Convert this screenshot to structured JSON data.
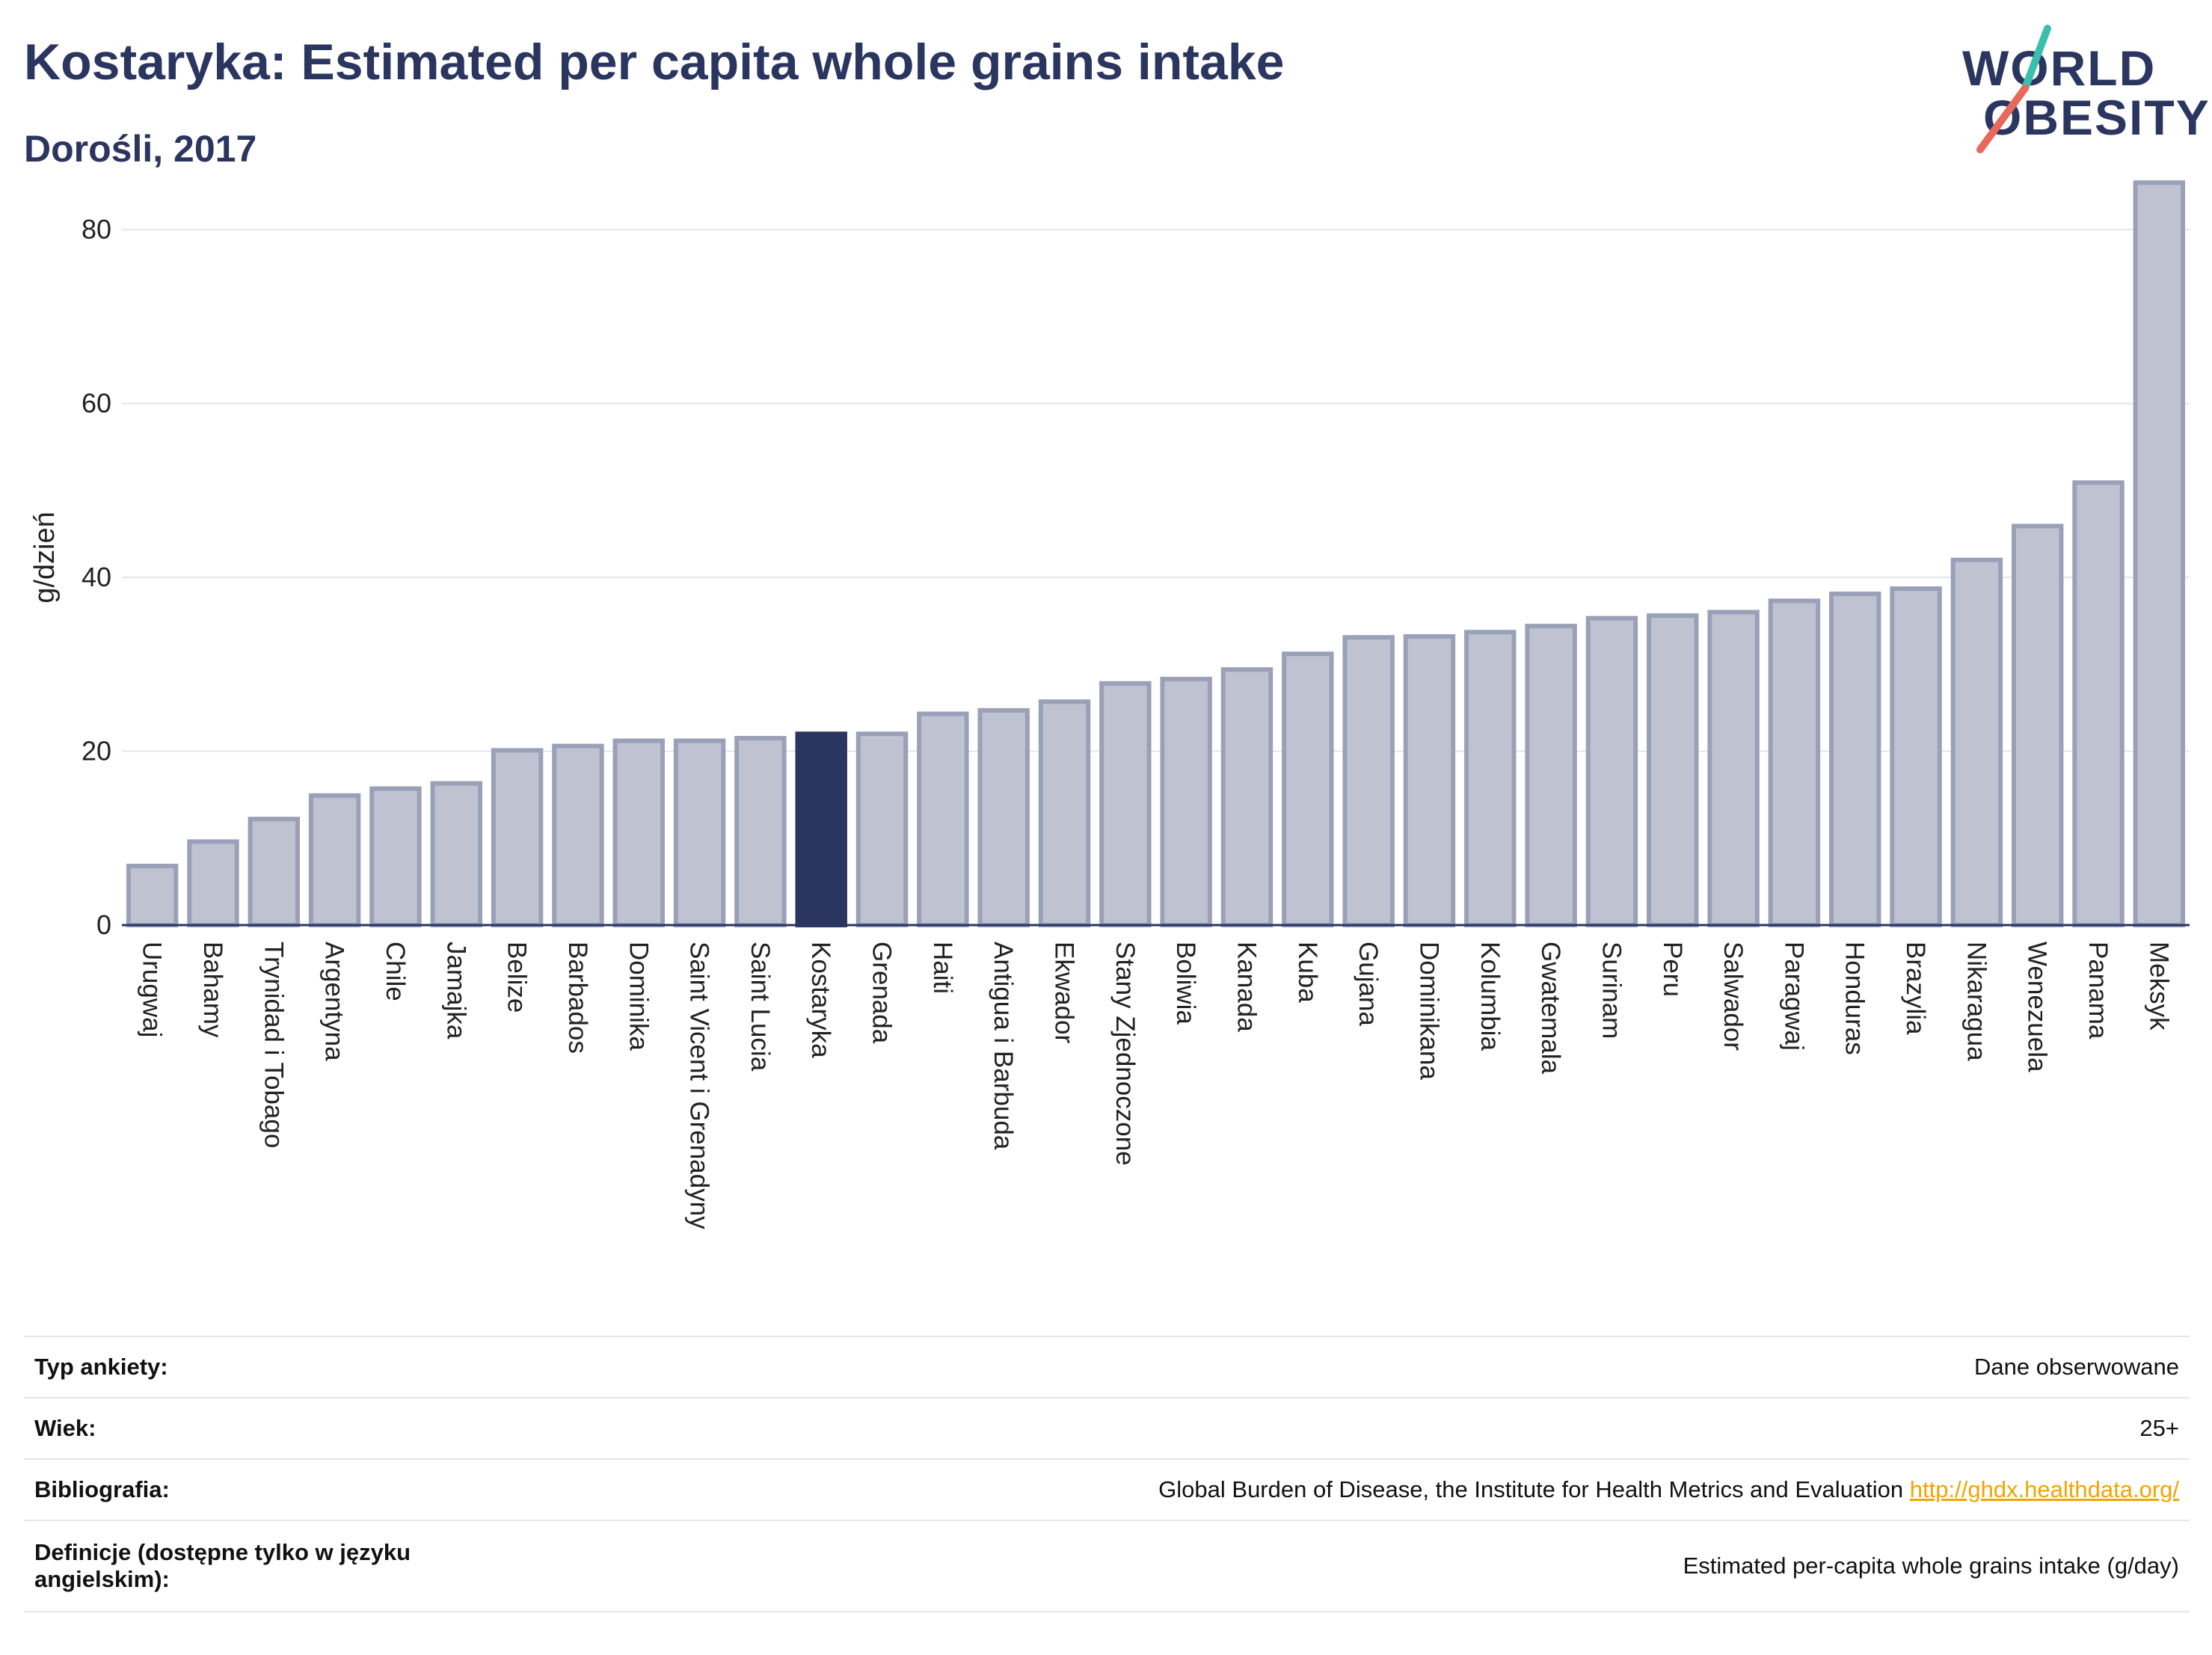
{
  "header": {
    "title": "Kostaryka: Estimated per capita whole grains intake",
    "subtitle": "Dorośli, 2017"
  },
  "logo": {
    "line1": "WORLD",
    "line2": "OBESITY",
    "accent_teal": "#3bbfad",
    "accent_red": "#e8685a"
  },
  "chart_data": {
    "type": "bar",
    "ylabel": "g/dzień",
    "ylim": [
      0,
      88
    ],
    "yticks": [
      0,
      20,
      40,
      60,
      80
    ],
    "grid": true,
    "highlight": "Kostaryka",
    "bar_color": "#bfc3d1",
    "bar_edge_color": "#9aa0b8",
    "highlight_color": "#2b3660",
    "categories": [
      "Urugwaj",
      "Bahamy",
      "Trynidad i Tobago",
      "Argentyna",
      "Chile",
      "Jamajka",
      "Belize",
      "Barbados",
      "Dominika",
      "Saint Vicent i Grenadyny",
      "Saint Lucia",
      "Kostaryka",
      "Grenada",
      "Haiti",
      "Antigua i Barbuda",
      "Ekwador",
      "Stany Zjednoczone",
      "Boliwia",
      "Kanada",
      "Kuba",
      "Gujana",
      "Dominikana",
      "Kolumbia",
      "Gwatemala",
      "Surinam",
      "Peru",
      "Salwador",
      "Paragwaj",
      "Honduras",
      "Brazylia",
      "Nikaragua",
      "Wenezuela",
      "Panama",
      "Meksyk"
    ],
    "values": [
      6.8,
      9.6,
      12.2,
      14.9,
      15.7,
      16.3,
      20.1,
      20.6,
      21.2,
      21.2,
      21.5,
      22.0,
      22.0,
      24.3,
      24.7,
      25.7,
      27.8,
      28.3,
      29.4,
      31.2,
      33.1,
      33.2,
      33.7,
      34.4,
      35.3,
      35.6,
      36.0,
      37.3,
      38.1,
      38.7,
      42.0,
      45.9,
      50.9,
      85.4
    ]
  },
  "info": {
    "rows": [
      {
        "label": "Typ ankiety:",
        "value": "Dane obserwowane"
      },
      {
        "label": "Wiek:",
        "value": "25+"
      },
      {
        "label": "Bibliografia:",
        "value": "Global Burden of Disease, the Institute for Health Metrics and Evaluation",
        "link": "http://ghdx.healthdata.org/"
      },
      {
        "label": "Definicje (dostępne tylko w języku angielskim):",
        "value": "Estimated per-capita whole grains intake (g/day)"
      }
    ]
  }
}
